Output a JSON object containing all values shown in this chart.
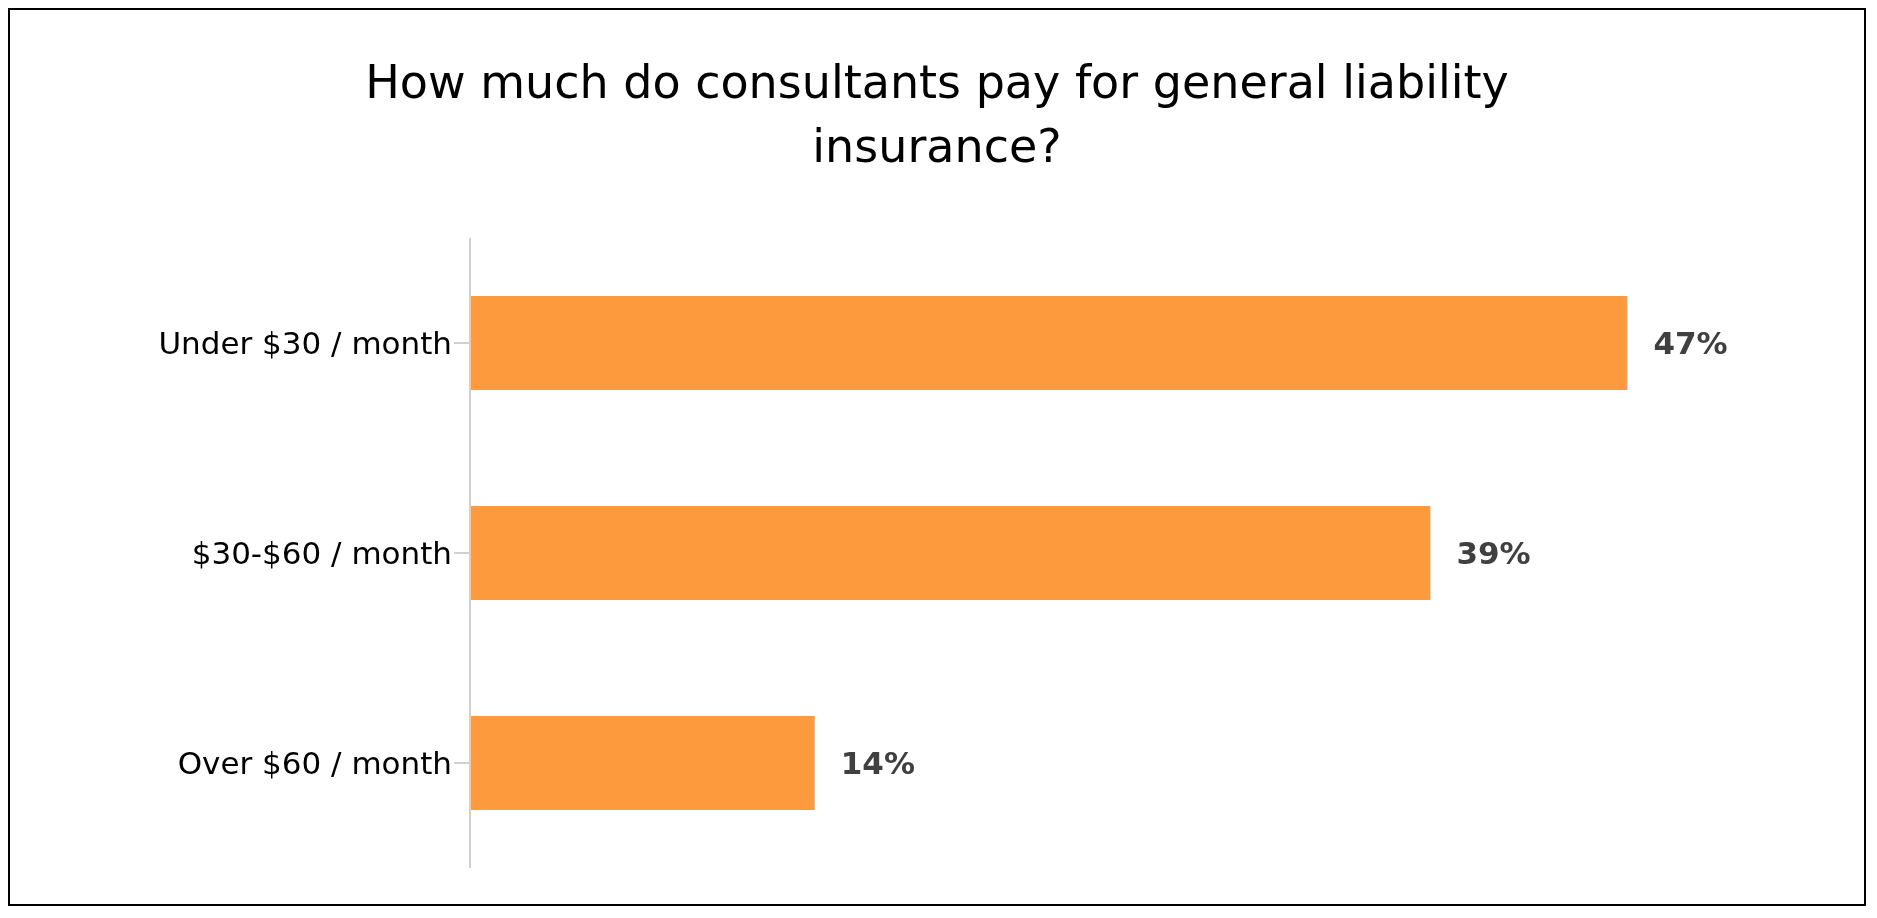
{
  "chart_data": {
    "type": "bar",
    "orientation": "horizontal",
    "title": "How much do consultants pay for general liability insurance?",
    "categories": [
      "Under $30 / month",
      "$30-$60 / month",
      "Over $60 / month"
    ],
    "values": [
      47,
      39,
      14
    ],
    "value_labels": [
      "47%",
      "39%",
      "14%"
    ],
    "color": "#fd9a3e",
    "tick_labels": "y"
  }
}
